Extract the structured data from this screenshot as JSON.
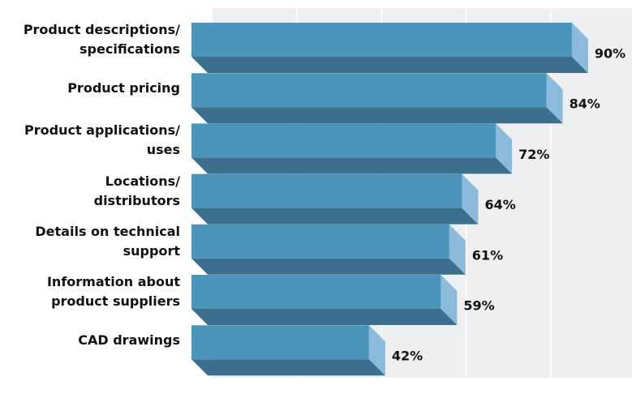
{
  "chart_data": {
    "type": "bar3d_horizontal",
    "categories": [
      "Product descriptions/\nspecifications",
      "Product pricing",
      "Product applications/\nuses",
      "Locations/\ndistributors",
      "Details on technical\nsupport",
      "Information about\nproduct suppliers",
      "CAD drawings"
    ],
    "values": [
      90,
      84,
      72,
      64,
      61,
      59,
      42
    ],
    "value_labels": [
      "90%",
      "84%",
      "72%",
      "64%",
      "61%",
      "59%",
      "42%"
    ],
    "color": "#4a95b9",
    "xlim": [
      0,
      100
    ],
    "xticks": [
      20,
      40,
      60,
      80
    ],
    "grid": true
  }
}
